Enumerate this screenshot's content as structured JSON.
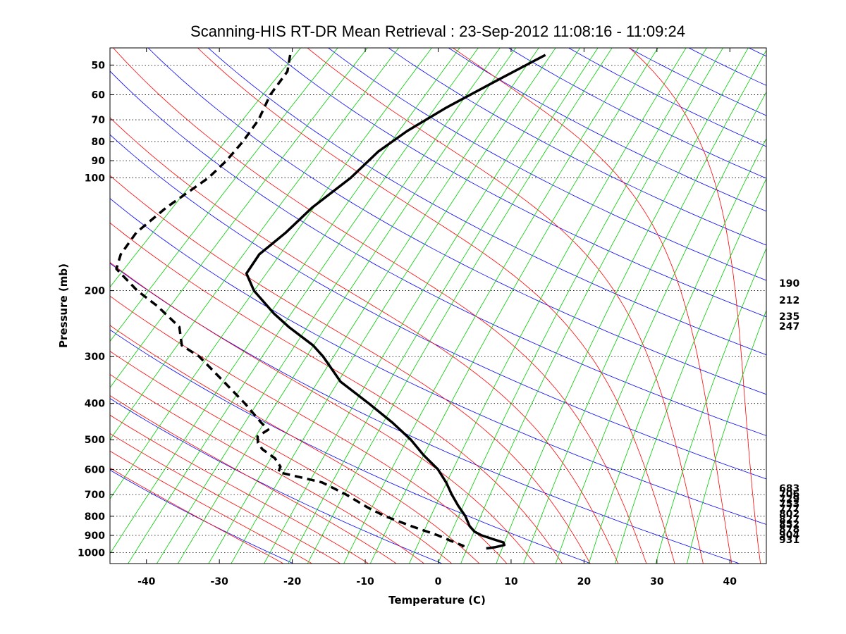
{
  "chart_data": {
    "type": "line",
    "subtype": "skew-T log-p thermodynamic diagram",
    "title": "Scanning-HIS RT-DR Mean Retrieval : 23-Sep-2012 11:08:16 - 11:09:24",
    "xlabel": "Temperature (C)",
    "ylabel": "Pressure (mb)",
    "xlim": [
      -45,
      45
    ],
    "ylim_pressure": [
      1070,
      45
    ],
    "skew_degC_per_log10_pressure": 54,
    "x_ticks": [
      -40,
      -30,
      -20,
      -10,
      0,
      10,
      20,
      30,
      40
    ],
    "y_ticks": [
      50,
      60,
      70,
      80,
      90,
      100,
      200,
      300,
      400,
      500,
      600,
      700,
      800,
      900,
      1000
    ],
    "grid": "horizontal dotted at pressure ticks",
    "background_lines": {
      "dry_adiabats": {
        "color": "#0000ff",
        "theta_K": [
          250,
          270,
          290,
          310,
          330,
          350,
          370,
          390,
          410,
          430,
          450,
          470,
          490,
          510,
          530,
          550,
          570,
          590,
          610
        ]
      },
      "moist_adiabats": {
        "color": "#ff0000",
        "theta_w_C": [
          -24,
          -20,
          -16,
          -12,
          -8,
          -4,
          0,
          4,
          8,
          12,
          16,
          20,
          24,
          28,
          32,
          36,
          40,
          44
        ]
      },
      "mixing_ratio_lines": {
        "color": "#00cc00",
        "r_g_per_kg": [
          0.002,
          0.005,
          0.01,
          0.02,
          0.04,
          0.07,
          0.1,
          0.15,
          0.2,
          0.3,
          0.4,
          0.6,
          0.8,
          1,
          1.5,
          2,
          3,
          4,
          5,
          7,
          9,
          12,
          16,
          20,
          28,
          36
        ]
      }
    },
    "series": [
      {
        "name": "Temperature",
        "style": "solid",
        "color": "#000000",
        "points": [
          [
            47,
            -57
          ],
          [
            55,
            -60
          ],
          [
            65,
            -63
          ],
          [
            75,
            -65
          ],
          [
            85,
            -66
          ],
          [
            100,
            -66
          ],
          [
            120,
            -67
          ],
          [
            140,
            -67
          ],
          [
            160,
            -67.5
          ],
          [
            180,
            -66.5
          ],
          [
            200,
            -63
          ],
          [
            230,
            -57
          ],
          [
            250,
            -53
          ],
          [
            280,
            -47
          ],
          [
            300,
            -44
          ],
          [
            350,
            -38
          ],
          [
            400,
            -31
          ],
          [
            450,
            -25
          ],
          [
            500,
            -20
          ],
          [
            550,
            -16
          ],
          [
            600,
            -12
          ],
          [
            650,
            -9
          ],
          [
            700,
            -6.5
          ],
          [
            750,
            -4
          ],
          [
            800,
            -1.5
          ],
          [
            850,
            0.5
          ],
          [
            880,
            2
          ],
          [
            900,
            3.5
          ],
          [
            920,
            5.5
          ],
          [
            940,
            7.5
          ],
          [
            955,
            8
          ],
          [
            968,
            7
          ],
          [
            975,
            6
          ]
        ]
      },
      {
        "name": "Dewpoint",
        "style": "dashed",
        "color": "#000000",
        "points": [
          [
            47,
            -92
          ],
          [
            52,
            -90
          ],
          [
            60,
            -89
          ],
          [
            70,
            -87
          ],
          [
            80,
            -86
          ],
          [
            90,
            -85.5
          ],
          [
            100,
            -85.5
          ],
          [
            120,
            -87
          ],
          [
            140,
            -87.5
          ],
          [
            160,
            -86.5
          ],
          [
            175,
            -85
          ],
          [
            200,
            -79
          ],
          [
            220,
            -74
          ],
          [
            250,
            -68
          ],
          [
            280,
            -65
          ],
          [
            300,
            -61
          ],
          [
            350,
            -54
          ],
          [
            400,
            -48
          ],
          [
            450,
            -43
          ],
          [
            470,
            -41
          ],
          [
            490,
            -41.5
          ],
          [
            510,
            -40.5
          ],
          [
            530,
            -39
          ],
          [
            560,
            -36
          ],
          [
            590,
            -34
          ],
          [
            610,
            -33.5
          ],
          [
            650,
            -26
          ],
          [
            700,
            -21
          ],
          [
            760,
            -16
          ],
          [
            800,
            -12.5
          ],
          [
            850,
            -7.5
          ],
          [
            900,
            -2.5
          ],
          [
            930,
            0
          ],
          [
            960,
            2.5
          ],
          [
            975,
            2
          ]
        ]
      }
    ],
    "right_labels": [
      "190",
      "212",
      "235",
      "247",
      "683",
      "706",
      "729",
      "753",
      "777",
      "802",
      "827",
      "852",
      "878",
      "904",
      "931"
    ]
  }
}
